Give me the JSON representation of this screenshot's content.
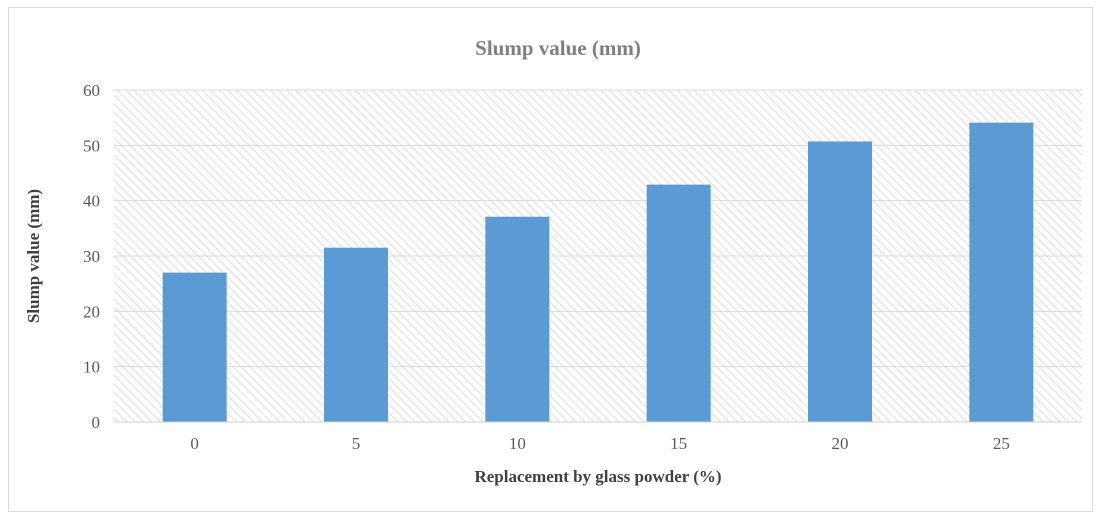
{
  "chart_data": {
    "type": "bar",
    "title": "Slump value (mm)",
    "xlabel": "Replacement by glass powder (%)",
    "ylabel": "Slump value (mm)",
    "categories": [
      "0",
      "5",
      "10",
      "15",
      "20",
      "25"
    ],
    "values": [
      27,
      31.5,
      37.1,
      42.9,
      50.7,
      54.1
    ],
    "ylim": [
      0,
      60
    ],
    "yticks": [
      "0",
      "10",
      "20",
      "30",
      "40",
      "50",
      "60"
    ],
    "grid": true,
    "legend": "none",
    "bar_color": "#5b9bd5",
    "plot_background": "hatched-light-gray"
  }
}
